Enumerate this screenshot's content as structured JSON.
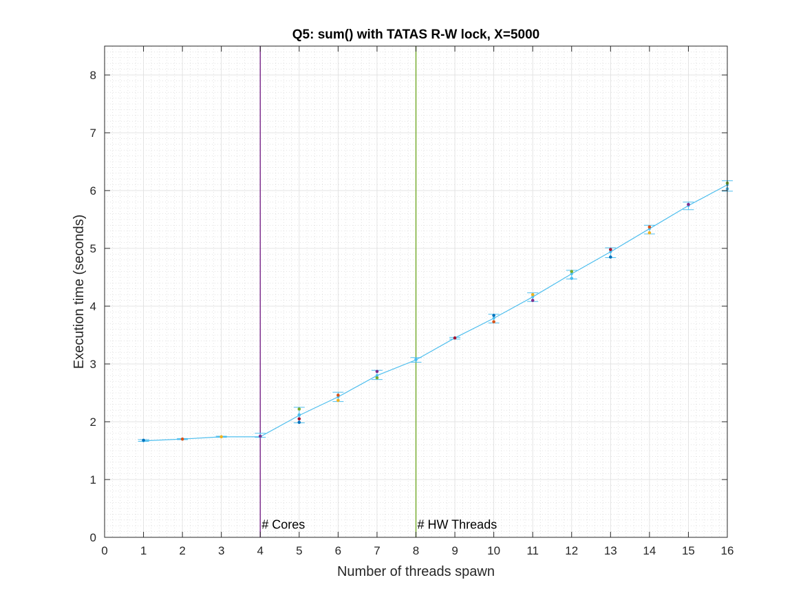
{
  "chart_data": {
    "type": "line",
    "title": "Q5: sum() with TATAS R-W lock, X=5000",
    "xlabel": "Number of threads spawn",
    "ylabel": "Execution time (seconds)",
    "xlim": [
      0,
      16
    ],
    "ylim": [
      0,
      8.5
    ],
    "xticks": [
      0,
      1,
      2,
      3,
      4,
      5,
      6,
      7,
      8,
      9,
      10,
      11,
      12,
      13,
      14,
      15,
      16
    ],
    "yticks": [
      0,
      1,
      2,
      3,
      4,
      5,
      6,
      7,
      8
    ],
    "grid": "on",
    "minor_grid": "on",
    "series": [
      {
        "color": "#4dbeee",
        "x": [
          1,
          2,
          3,
          4,
          5,
          6,
          7,
          8,
          9,
          10,
          11,
          12,
          13,
          14,
          15,
          16
        ],
        "y": [
          1.67,
          1.7,
          1.74,
          1.74,
          2.11,
          2.43,
          2.8,
          3.07,
          3.45,
          3.79,
          4.16,
          4.56,
          4.94,
          5.34,
          5.74,
          6.1
        ],
        "err_low": [
          1.66,
          1.69,
          1.73,
          1.73,
          1.98,
          2.35,
          2.73,
          3.03,
          3.43,
          3.71,
          4.08,
          4.47,
          4.84,
          5.25,
          5.67,
          5.99
        ],
        "err_high": [
          1.69,
          1.71,
          1.75,
          1.8,
          2.25,
          2.51,
          2.89,
          3.11,
          3.46,
          3.86,
          4.23,
          4.62,
          5.01,
          5.4,
          5.8,
          6.17
        ]
      }
    ],
    "trial_markers": {
      "colors": [
        "#0072bd",
        "#d95319",
        "#edb120",
        "#7e2f8e",
        "#77ac30",
        "#4dbeee",
        "#a2142f"
      ],
      "x": [
        1,
        2,
        3,
        4,
        5,
        5,
        5,
        5,
        6,
        6,
        7,
        7,
        8,
        9,
        10,
        10,
        11,
        11,
        12,
        12,
        13,
        13,
        14,
        14,
        15,
        16,
        16
      ],
      "y": [
        1.68,
        1.7,
        1.74,
        1.75,
        2.22,
        2.12,
        2.05,
        1.99,
        2.46,
        2.37,
        2.87,
        2.76,
        3.08,
        3.45,
        3.84,
        3.73,
        4.2,
        4.1,
        4.6,
        4.48,
        4.98,
        4.85,
        5.37,
        5.27,
        5.76,
        6.13,
        6.03
      ]
    },
    "vlines": [
      {
        "x": 4,
        "label": "# Cores",
        "color": "#7e2f8e"
      },
      {
        "x": 8,
        "label": "# HW Threads",
        "color": "#77ac30"
      }
    ]
  }
}
